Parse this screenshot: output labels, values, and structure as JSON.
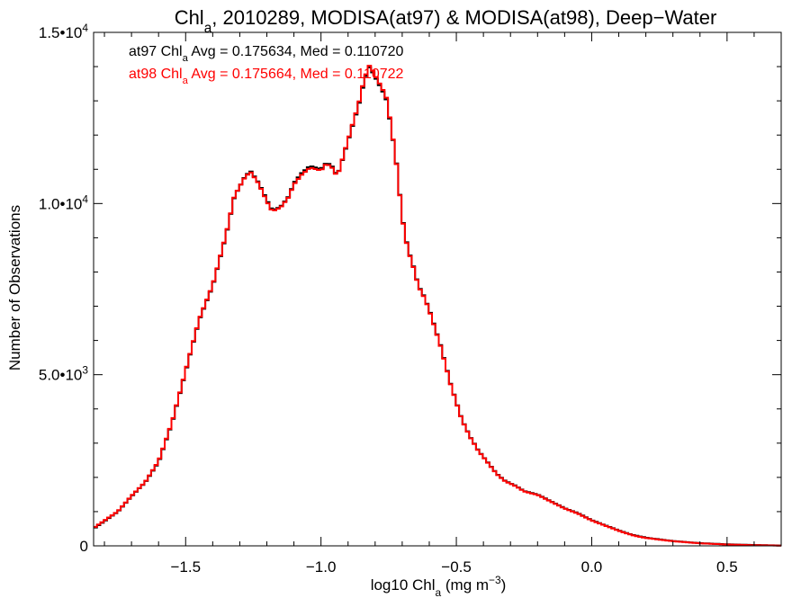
{
  "chart_data": {
    "type": "histogram-step",
    "title": {
      "parts": [
        {
          "t": "Chl",
          "sub": false
        },
        {
          "t": "a",
          "sub": true
        },
        {
          "t": ", 2010289, MODISA(at97) & MODISA(at98), Deep−Water",
          "sub": false
        }
      ]
    },
    "xlabel": {
      "parts": [
        {
          "t": "log10 Chl",
          "sub": false
        },
        {
          "t": "a",
          "sub": true
        },
        {
          "t": " (mg m",
          "sub": false
        },
        {
          "t": "−3",
          "sup": true
        },
        {
          "t": ")",
          "sub": false
        }
      ]
    },
    "ylabel": "Number of Observations",
    "xlim": [
      -1.84,
      0.7
    ],
    "ylim": [
      0,
      15000
    ],
    "x_ticks": [
      {
        "value": -1.5,
        "label": "−1.5"
      },
      {
        "value": -1.0,
        "label": "−1.0"
      },
      {
        "value": -0.5,
        "label": "−0.5"
      },
      {
        "value": 0.0,
        "label": "0.0"
      },
      {
        "value": 0.5,
        "label": "0.5"
      }
    ],
    "y_ticks": [
      {
        "value": 0,
        "mant": "0",
        "exp": ""
      },
      {
        "value": 5000,
        "mant": "5.0•10",
        "exp": "3"
      },
      {
        "value": 10000,
        "mant": "1.0•10",
        "exp": "4"
      },
      {
        "value": 15000,
        "mant": "1.5•10",
        "exp": "4"
      }
    ],
    "annotations": [
      {
        "series": "at97",
        "color": "#000000",
        "parts": [
          {
            "t": "at97 Chl",
            "sub": false
          },
          {
            "t": "a",
            "sub": true
          },
          {
            "t": " Avg = 0.175634, Med = 0.110720",
            "sub": false
          }
        ]
      },
      {
        "series": "at98",
        "color": "#ff0000",
        "parts": [
          {
            "t": "at98 Chl",
            "sub": false
          },
          {
            "t": "a",
            "sub": true
          },
          {
            "t": " Avg = 0.175664, Med = 0.110722",
            "sub": false
          }
        ]
      }
    ],
    "series": [
      {
        "name": "at97",
        "color": "#000000",
        "points": [
          [
            -1.84,
            500
          ],
          [
            -1.75,
            1000
          ],
          [
            -1.7,
            1450
          ],
          [
            -1.65,
            1850
          ],
          [
            -1.6,
            2450
          ],
          [
            -1.55,
            3600
          ],
          [
            -1.5,
            5100
          ],
          [
            -1.45,
            6600
          ],
          [
            -1.4,
            7600
          ],
          [
            -1.35,
            9100
          ],
          [
            -1.32,
            10200
          ],
          [
            -1.28,
            10800
          ],
          [
            -1.26,
            10950
          ],
          [
            -1.23,
            10600
          ],
          [
            -1.2,
            10100
          ],
          [
            -1.18,
            9800
          ],
          [
            -1.15,
            9900
          ],
          [
            -1.12,
            10200
          ],
          [
            -1.1,
            10600
          ],
          [
            -1.07,
            10900
          ],
          [
            -1.04,
            11100
          ],
          [
            -1.0,
            11000
          ],
          [
            -0.98,
            11200
          ],
          [
            -0.96,
            11100
          ],
          [
            -0.94,
            10800
          ],
          [
            -0.92,
            11300
          ],
          [
            -0.89,
            12100
          ],
          [
            -0.86,
            12900
          ],
          [
            -0.84,
            13600
          ],
          [
            -0.82,
            14000
          ],
          [
            -0.8,
            13700
          ],
          [
            -0.78,
            13400
          ],
          [
            -0.76,
            13100
          ],
          [
            -0.74,
            12200
          ],
          [
            -0.72,
            11100
          ],
          [
            -0.7,
            9600
          ],
          [
            -0.68,
            8700
          ],
          [
            -0.66,
            8200
          ],
          [
            -0.64,
            7600
          ],
          [
            -0.62,
            7300
          ],
          [
            -0.6,
            6900
          ],
          [
            -0.58,
            6400
          ],
          [
            -0.56,
            5900
          ],
          [
            -0.54,
            5300
          ],
          [
            -0.52,
            4700
          ],
          [
            -0.5,
            4200
          ],
          [
            -0.48,
            3700
          ],
          [
            -0.45,
            3200
          ],
          [
            -0.42,
            2800
          ],
          [
            -0.38,
            2400
          ],
          [
            -0.35,
            2100
          ],
          [
            -0.32,
            1900
          ],
          [
            -0.28,
            1750
          ],
          [
            -0.25,
            1600
          ],
          [
            -0.2,
            1500
          ],
          [
            -0.15,
            1300
          ],
          [
            -0.1,
            1100
          ],
          [
            -0.05,
            950
          ],
          [
            0.0,
            750
          ],
          [
            0.05,
            600
          ],
          [
            0.1,
            450
          ],
          [
            0.15,
            320
          ],
          [
            0.2,
            240
          ],
          [
            0.3,
            140
          ],
          [
            0.4,
            80
          ],
          [
            0.5,
            45
          ],
          [
            0.6,
            25
          ],
          [
            0.7,
            10
          ]
        ]
      },
      {
        "name": "at98",
        "color": "#ff0000",
        "points": [
          [
            -1.84,
            520
          ],
          [
            -1.75,
            1010
          ],
          [
            -1.7,
            1460
          ],
          [
            -1.65,
            1860
          ],
          [
            -1.6,
            2470
          ],
          [
            -1.55,
            3620
          ],
          [
            -1.5,
            5120
          ],
          [
            -1.45,
            6620
          ],
          [
            -1.4,
            7620
          ],
          [
            -1.35,
            9120
          ],
          [
            -1.32,
            10220
          ],
          [
            -1.28,
            10780
          ],
          [
            -1.26,
            10920
          ],
          [
            -1.23,
            10580
          ],
          [
            -1.2,
            10060
          ],
          [
            -1.18,
            9770
          ],
          [
            -1.15,
            9880
          ],
          [
            -1.12,
            10180
          ],
          [
            -1.1,
            10560
          ],
          [
            -1.07,
            10850
          ],
          [
            -1.04,
            11050
          ],
          [
            -1.0,
            10960
          ],
          [
            -0.98,
            11170
          ],
          [
            -0.96,
            11060
          ],
          [
            -0.94,
            10780
          ],
          [
            -0.92,
            11320
          ],
          [
            -0.89,
            12130
          ],
          [
            -0.86,
            12940
          ],
          [
            -0.84,
            13650
          ],
          [
            -0.82,
            14050
          ],
          [
            -0.8,
            13750
          ],
          [
            -0.78,
            13450
          ],
          [
            -0.76,
            13150
          ],
          [
            -0.74,
            12230
          ],
          [
            -0.72,
            11080
          ],
          [
            -0.7,
            9580
          ],
          [
            -0.68,
            8680
          ],
          [
            -0.66,
            8180
          ],
          [
            -0.64,
            7580
          ],
          [
            -0.62,
            7280
          ],
          [
            -0.6,
            6880
          ],
          [
            -0.58,
            6380
          ],
          [
            -0.56,
            5880
          ],
          [
            -0.54,
            5280
          ],
          [
            -0.52,
            4680
          ],
          [
            -0.5,
            4190
          ],
          [
            -0.48,
            3690
          ],
          [
            -0.45,
            3190
          ],
          [
            -0.42,
            2790
          ],
          [
            -0.38,
            2390
          ],
          [
            -0.35,
            2090
          ],
          [
            -0.32,
            1890
          ],
          [
            -0.28,
            1740
          ],
          [
            -0.25,
            1590
          ],
          [
            -0.2,
            1490
          ],
          [
            -0.15,
            1290
          ],
          [
            -0.1,
            1090
          ],
          [
            -0.05,
            940
          ],
          [
            0.0,
            740
          ],
          [
            0.05,
            590
          ],
          [
            0.1,
            440
          ],
          [
            0.15,
            310
          ],
          [
            0.2,
            230
          ],
          [
            0.3,
            135
          ],
          [
            0.4,
            75
          ],
          [
            0.5,
            40
          ],
          [
            0.6,
            20
          ],
          [
            0.7,
            8
          ]
        ]
      }
    ]
  }
}
